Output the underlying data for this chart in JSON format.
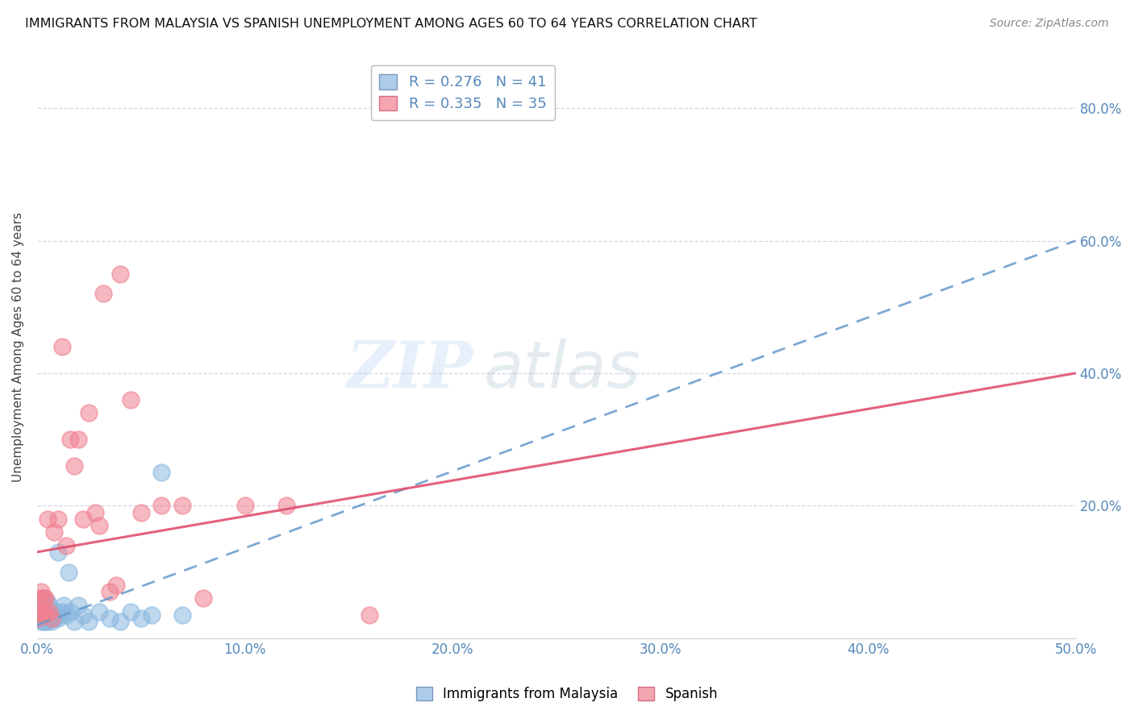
{
  "title": "IMMIGRANTS FROM MALAYSIA VS SPANISH UNEMPLOYMENT AMONG AGES 60 TO 64 YEARS CORRELATION CHART",
  "source": "Source: ZipAtlas.com",
  "ylabel": "Unemployment Among Ages 60 to 64 years",
  "xlabel": "",
  "xlim": [
    0.0,
    0.5
  ],
  "ylim": [
    0.0,
    0.88
  ],
  "xticks": [
    0.0,
    0.1,
    0.2,
    0.3,
    0.4,
    0.5
  ],
  "yticks_right": [
    0.2,
    0.4,
    0.6,
    0.8
  ],
  "ytick_labels_right": [
    "20.0%",
    "40.0%",
    "60.0%",
    "80.0%"
  ],
  "xtick_labels": [
    "0.0%",
    "10.0%",
    "20.0%",
    "30.0%",
    "40.0%",
    "50.0%"
  ],
  "legend_R1": "R = 0.276",
  "legend_N1": "N = 41",
  "legend_R2": "R = 0.335",
  "legend_N2": "N = 35",
  "color_blue": "#8BB8E0",
  "color_pink": "#F08090",
  "color_blue_line": "#6699CC",
  "color_pink_line": "#E05070",
  "watermark_zip": "ZIP",
  "watermark_atlas": "atlas",
  "blue_points_x": [
    0.0005,
    0.001,
    0.001,
    0.0015,
    0.002,
    0.002,
    0.003,
    0.003,
    0.003,
    0.004,
    0.004,
    0.004,
    0.005,
    0.005,
    0.005,
    0.006,
    0.006,
    0.007,
    0.007,
    0.008,
    0.009,
    0.01,
    0.01,
    0.011,
    0.012,
    0.013,
    0.014,
    0.015,
    0.016,
    0.018,
    0.02,
    0.022,
    0.025,
    0.03,
    0.035,
    0.04,
    0.045,
    0.05,
    0.055,
    0.06,
    0.07
  ],
  "blue_points_y": [
    0.03,
    0.04,
    0.05,
    0.035,
    0.025,
    0.05,
    0.025,
    0.04,
    0.06,
    0.025,
    0.03,
    0.05,
    0.025,
    0.04,
    0.055,
    0.03,
    0.05,
    0.025,
    0.04,
    0.03,
    0.04,
    0.03,
    0.13,
    0.035,
    0.04,
    0.05,
    0.035,
    0.1,
    0.04,
    0.025,
    0.05,
    0.035,
    0.025,
    0.04,
    0.03,
    0.025,
    0.04,
    0.03,
    0.035,
    0.25,
    0.035
  ],
  "pink_points_x": [
    0.0005,
    0.001,
    0.001,
    0.002,
    0.002,
    0.003,
    0.003,
    0.004,
    0.004,
    0.005,
    0.006,
    0.007,
    0.008,
    0.01,
    0.012,
    0.014,
    0.016,
    0.018,
    0.02,
    0.022,
    0.025,
    0.028,
    0.03,
    0.032,
    0.035,
    0.038,
    0.04,
    0.045,
    0.05,
    0.06,
    0.07,
    0.08,
    0.1,
    0.12,
    0.16
  ],
  "pink_points_y": [
    0.03,
    0.04,
    0.06,
    0.04,
    0.07,
    0.035,
    0.06,
    0.04,
    0.06,
    0.18,
    0.04,
    0.03,
    0.16,
    0.18,
    0.44,
    0.14,
    0.3,
    0.26,
    0.3,
    0.18,
    0.34,
    0.19,
    0.17,
    0.52,
    0.07,
    0.08,
    0.55,
    0.36,
    0.19,
    0.2,
    0.2,
    0.06,
    0.2,
    0.2,
    0.035
  ],
  "blue_trend_x": [
    0.0,
    0.5
  ],
  "blue_trend_y": [
    0.02,
    0.6
  ],
  "pink_trend_x": [
    0.0,
    0.5
  ],
  "pink_trend_y": [
    0.13,
    0.4
  ]
}
